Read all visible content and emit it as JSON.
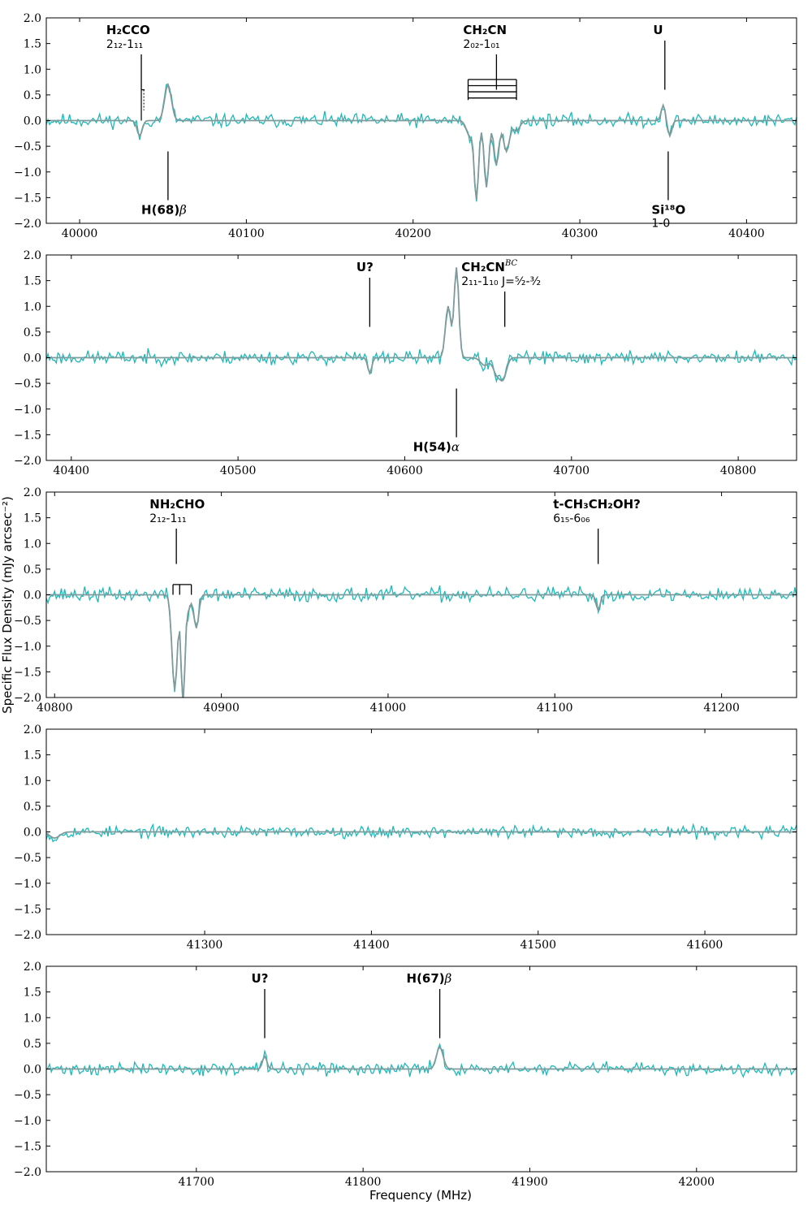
{
  "figure": {
    "xlabel": "Frequency (MHz)",
    "ylabel": "Specific Flux Density (mJy arcsec⁻²)",
    "colors": {
      "observed": "#20b8b8",
      "model": "#7f9a9a",
      "axes": "#000000"
    }
  },
  "chart_data": [
    {
      "type": "line",
      "xlim": [
        39980,
        40430
      ],
      "ylim": [
        -2.0,
        2.0
      ],
      "xticks": [
        40000,
        40100,
        40200,
        40300,
        40400
      ],
      "yticks": [
        -2.0,
        -1.5,
        -1.0,
        -0.5,
        0.0,
        0.5,
        1.0,
        1.5,
        2.0
      ],
      "series": [
        {
          "role": "observed",
          "noise": 0.065,
          "seed": 11
        },
        {
          "role": "model"
        }
      ],
      "features": [
        {
          "x": 40036,
          "depth": -0.3,
          "width": 1.5
        },
        {
          "x": 40053,
          "depth": 0.7,
          "width": 2.0
        },
        {
          "x": 40234,
          "depth": -0.3,
          "width": 2.0
        },
        {
          "x": 40238,
          "depth": -1.5,
          "width": 1.3
        },
        {
          "x": 40244,
          "depth": -1.3,
          "width": 1.4
        },
        {
          "x": 40250,
          "depth": -0.85,
          "width": 1.5
        },
        {
          "x": 40256,
          "depth": -0.6,
          "width": 1.8
        },
        {
          "x": 40262,
          "depth": -0.2,
          "width": 2.0
        },
        {
          "x": 40350,
          "depth": 0.3,
          "width": 1.2
        },
        {
          "x": 40354,
          "depth": -0.3,
          "width": 1.2
        }
      ],
      "annotations": [
        {
          "id": "h2cco",
          "name": "H₂CCO",
          "transition": "2₁₂-1₁₁",
          "x": 40037,
          "place": "above",
          "label_x": 40016
        },
        {
          "id": "ch2cn-a",
          "name": "CH₂CN",
          "transition": "2₀₂-1₀₁",
          "x": 40250,
          "place": "above",
          "label_x": 40230
        },
        {
          "id": "u-top",
          "name": "U",
          "transition": "",
          "x": 40351,
          "place": "above",
          "label_x": 40344
        },
        {
          "id": "h68b",
          "name": "H(68)",
          "greek": "β",
          "transition": "",
          "x": 40053,
          "place": "below",
          "label_x": 40037
        },
        {
          "id": "si18o",
          "name": "Si¹⁸O",
          "transition": "1-0",
          "x": 40353,
          "place": "below",
          "label_x": 40343
        }
      ]
    },
    {
      "type": "line",
      "xlim": [
        40385,
        40835
      ],
      "ylim": [
        -2.0,
        2.0
      ],
      "xticks": [
        40400,
        40500,
        40600,
        40700,
        40800
      ],
      "yticks": [
        -2.0,
        -1.5,
        -1.0,
        -0.5,
        0.0,
        0.5,
        1.0,
        1.5,
        2.0
      ],
      "series": [
        {
          "role": "observed",
          "noise": 0.065,
          "seed": 23
        },
        {
          "role": "model"
        }
      ],
      "features": [
        {
          "x": 40579,
          "depth": -0.3,
          "width": 1.2
        },
        {
          "x": 40626,
          "depth": 1.0,
          "width": 1.6
        },
        {
          "x": 40631,
          "depth": 1.75,
          "width": 1.4
        },
        {
          "x": 40648,
          "depth": -0.15,
          "width": 2.5
        },
        {
          "x": 40655,
          "depth": -0.3,
          "width": 2.0
        },
        {
          "x": 40659,
          "depth": -0.4,
          "width": 2.0
        }
      ],
      "annotations": [
        {
          "id": "u-q",
          "name": "U?",
          "transition": "",
          "x": 40579,
          "place": "above",
          "label_x": 40571
        },
        {
          "id": "ch2cn-b",
          "name": "CH₂CN",
          "sup": "BC",
          "transition": "2₁₁-1₁₀ J=⁵⁄₂-³⁄₂",
          "x": 40660,
          "place": "above",
          "label_x": 40634
        },
        {
          "id": "h54a",
          "name": "H(54)",
          "greek": "α",
          "transition": "",
          "x": 40631,
          "place": "below",
          "label_x": 40605
        }
      ]
    },
    {
      "type": "line",
      "xlim": [
        40795,
        41245
      ],
      "ylim": [
        -2.0,
        2.0
      ],
      "xticks": [
        40800,
        40900,
        41000,
        41100,
        41200
      ],
      "yticks": [
        -2.0,
        -1.5,
        -1.0,
        -0.5,
        0.0,
        0.5,
        1.0,
        1.5,
        2.0
      ],
      "series": [
        {
          "role": "observed",
          "noise": 0.07,
          "seed": 37
        },
        {
          "role": "model"
        }
      ],
      "features": [
        {
          "x": 40872,
          "depth": -1.85,
          "width": 1.6
        },
        {
          "x": 40877,
          "depth": -2.1,
          "width": 1.1
        },
        {
          "x": 40880,
          "depth": -0.3,
          "width": 1.4
        },
        {
          "x": 40885,
          "depth": -0.65,
          "width": 1.4
        },
        {
          "x": 41126,
          "depth": -0.3,
          "width": 1.2
        }
      ],
      "annotations": [
        {
          "id": "nh2cho",
          "name": "NH₂CHO",
          "transition": "2₁₂-1₁₁",
          "x": 40873,
          "place": "above",
          "label_x": 40857
        },
        {
          "id": "t-ethanol",
          "name": "t-CH₃CH₂OH?",
          "transition": "6₁₅-6₀₆",
          "x": 41126,
          "place": "above",
          "label_x": 41099
        }
      ]
    },
    {
      "type": "line",
      "xlim": [
        41205,
        41655
      ],
      "ylim": [
        -2.0,
        2.0
      ],
      "xticks": [
        41300,
        41400,
        41500,
        41600
      ],
      "yticks": [
        -2.0,
        -1.5,
        -1.0,
        -0.5,
        0.0,
        0.5,
        1.0,
        1.5,
        2.0
      ],
      "series": [
        {
          "role": "observed",
          "noise": 0.055,
          "seed": 53
        },
        {
          "role": "model"
        }
      ],
      "features": [
        {
          "x": 41210,
          "depth": -0.12,
          "width": 3.0
        }
      ],
      "annotations": []
    },
    {
      "type": "line",
      "xlim": [
        41610,
        42060
      ],
      "ylim": [
        -2.0,
        2.0
      ],
      "xticks": [
        41700,
        41800,
        41900,
        42000
      ],
      "yticks": [
        -2.0,
        -1.5,
        -1.0,
        -0.5,
        0.0,
        0.5,
        1.0,
        1.5,
        2.0
      ],
      "series": [
        {
          "role": "observed",
          "noise": 0.06,
          "seed": 71
        },
        {
          "role": "model"
        }
      ],
      "features": [
        {
          "x": 41741,
          "depth": 0.25,
          "width": 1.3
        },
        {
          "x": 41846,
          "depth": 0.43,
          "width": 2.0
        }
      ],
      "annotations": [
        {
          "id": "u-q2",
          "name": "U?",
          "transition": "",
          "x": 41741,
          "place": "above",
          "label_x": 41733
        },
        {
          "id": "h67b",
          "name": "H(67)",
          "greek": "β",
          "transition": "",
          "x": 41846,
          "place": "above",
          "label_x": 41826
        }
      ]
    }
  ]
}
